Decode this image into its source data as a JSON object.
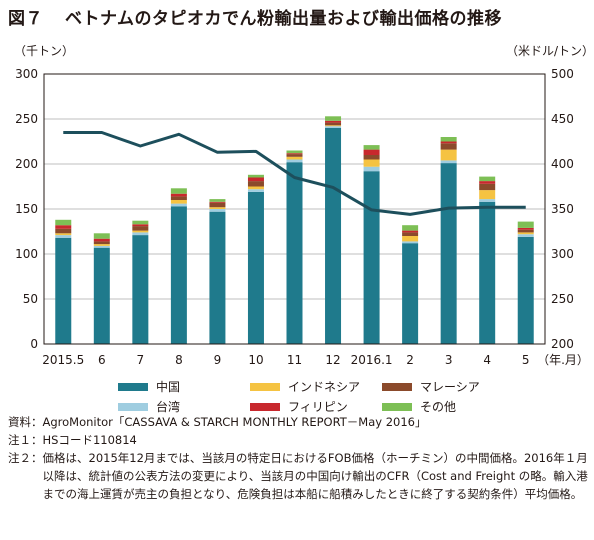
{
  "title": {
    "fig_no": "図７",
    "text": "ベトナムのタピオカでん粉輸出量および輸出価格の推移"
  },
  "units": {
    "left": "（千トン）",
    "right": "（米ドル/トン）"
  },
  "colors": {
    "china": "#1f7a8c",
    "indonesia": "#f5c342",
    "malaysia": "#8b4a2b",
    "taiwan": "#9fcde0",
    "philippines": "#c8282d",
    "others": "#7dbf55",
    "price_line": "#1d4f5c",
    "axis": "#231815",
    "grid": "#bfbfbf"
  },
  "chart_data": {
    "type": "bar",
    "stacked": true,
    "categories": [
      "2015.5",
      "6",
      "7",
      "8",
      "9",
      "10",
      "11",
      "12",
      "2016.1",
      "2",
      "3",
      "4",
      "5"
    ],
    "x_unit_label": "（年.月）",
    "ylabel_left": "（千トン）",
    "ylabel_right": "（米ドル/トン）",
    "ylim_left": [
      0,
      300
    ],
    "ylim_right": [
      200,
      500
    ],
    "yticks_left": [
      0,
      50,
      100,
      150,
      200,
      250,
      300
    ],
    "yticks_right": [
      200,
      250,
      300,
      350,
      400,
      450,
      500
    ],
    "grid": "horizontal",
    "series": [
      {
        "name": "中国",
        "key": "china",
        "values": [
          118,
          107,
          121,
          153,
          147,
          169,
          202,
          240,
          192,
          112,
          201,
          158,
          119
        ]
      },
      {
        "name": "台湾",
        "key": "taiwan",
        "values": [
          3,
          2,
          3,
          3,
          3,
          3,
          3,
          2,
          5,
          2,
          3,
          3,
          3
        ]
      },
      {
        "name": "インドネシア",
        "key": "indonesia",
        "values": [
          2,
          2,
          2,
          4,
          2,
          3,
          3,
          1,
          8,
          6,
          12,
          10,
          2
        ]
      },
      {
        "name": "マレーシア",
        "key": "malaysia",
        "values": [
          5,
          3,
          5,
          4,
          5,
          6,
          3,
          3,
          5,
          4,
          7,
          7,
          3
        ]
      },
      {
        "name": "フィリピン",
        "key": "philippines",
        "values": [
          4,
          3,
          2,
          3,
          1,
          4,
          1,
          2,
          6,
          2,
          2,
          3,
          2
        ]
      },
      {
        "name": "その他",
        "key": "others",
        "values": [
          6,
          6,
          4,
          6,
          3,
          3,
          3,
          5,
          5,
          6,
          5,
          5,
          7
        ]
      }
    ],
    "line": {
      "name": "輸出価格",
      "axis": "right",
      "values": [
        435,
        435,
        420,
        433,
        413,
        414,
        385,
        374,
        349,
        344,
        351,
        352,
        352
      ]
    }
  },
  "legend": [
    {
      "label": "中国",
      "key": "china"
    },
    {
      "label": "インドネシア",
      "key": "indonesia"
    },
    {
      "label": "マレーシア",
      "key": "malaysia"
    },
    {
      "label": "台湾",
      "key": "taiwan"
    },
    {
      "label": "フィリピン",
      "key": "philippines"
    },
    {
      "label": "その他",
      "key": "others"
    }
  ],
  "notes": [
    {
      "label": "資料：",
      "text": "AgroMonitor「CASSAVA & STARCH MONTHLY REPORT－May 2016」"
    },
    {
      "label": "注１：",
      "text": "HSコード110814"
    },
    {
      "label": "注２：",
      "text": "価格は、2015年12月までは、当該月の特定日におけるFOB価格（ホーチミン）の中間価格。2016年１月以降は、統計値の公表方法の変更により、当該月の中国向け輸出のCFR（Cost and Freight の略。輸入港までの海上運賃が売主の負担となり、危険負担は本船に船積みしたときに終了する契約条件）平均価格。"
    }
  ]
}
